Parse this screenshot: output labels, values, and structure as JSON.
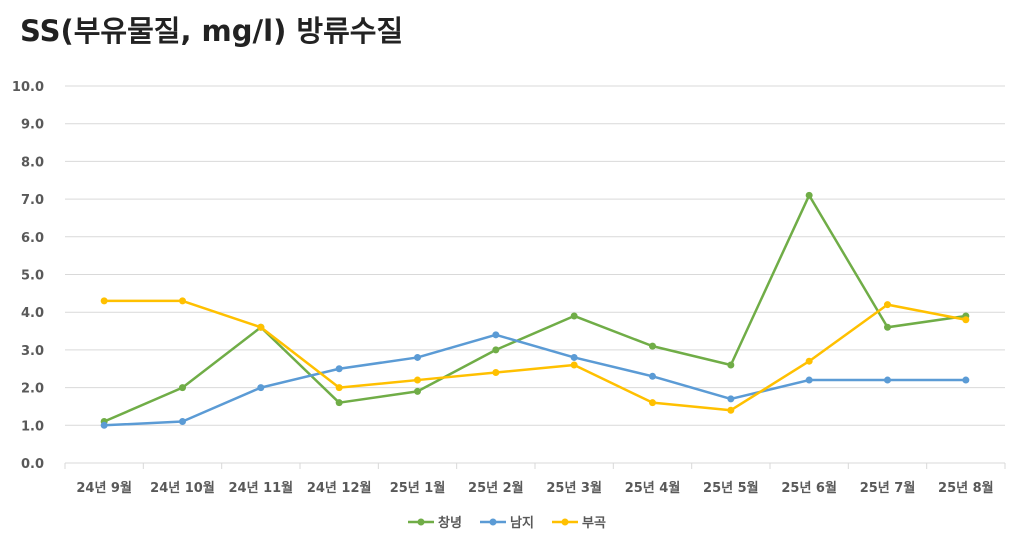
{
  "chart_data": {
    "type": "line",
    "title": "SS(부유물질, mg/l) 방류수질",
    "xlabel": "",
    "ylabel": "",
    "ylim": [
      0,
      10
    ],
    "yticks": [
      "0.0",
      "1.0",
      "2.0",
      "3.0",
      "4.0",
      "5.0",
      "6.0",
      "7.0",
      "8.0",
      "9.0",
      "10.0"
    ],
    "grid": true,
    "legend_position": "bottom",
    "categories": [
      "24년 9월",
      "24년 10월",
      "24년 11월",
      "24년 12월",
      "25년 1월",
      "25년 2월",
      "25년 3월",
      "25년 4월",
      "25년 5월",
      "25년 6월",
      "25년 7월",
      "25년 8월"
    ],
    "series": [
      {
        "name": "창녕",
        "color": "#70ad47",
        "values": [
          1.1,
          2.0,
          3.6,
          1.6,
          1.9,
          3.0,
          3.9,
          3.1,
          2.6,
          7.1,
          3.6,
          3.9
        ]
      },
      {
        "name": "남지",
        "color": "#5b9bd5",
        "values": [
          1.0,
          1.1,
          2.0,
          2.5,
          2.8,
          3.4,
          2.8,
          2.3,
          1.7,
          2.2,
          2.2,
          2.2
        ]
      },
      {
        "name": "부곡",
        "color": "#ffc000",
        "values": [
          4.3,
          4.3,
          3.6,
          2.0,
          2.2,
          2.4,
          2.6,
          1.6,
          1.4,
          2.7,
          4.2,
          3.8
        ]
      }
    ]
  }
}
